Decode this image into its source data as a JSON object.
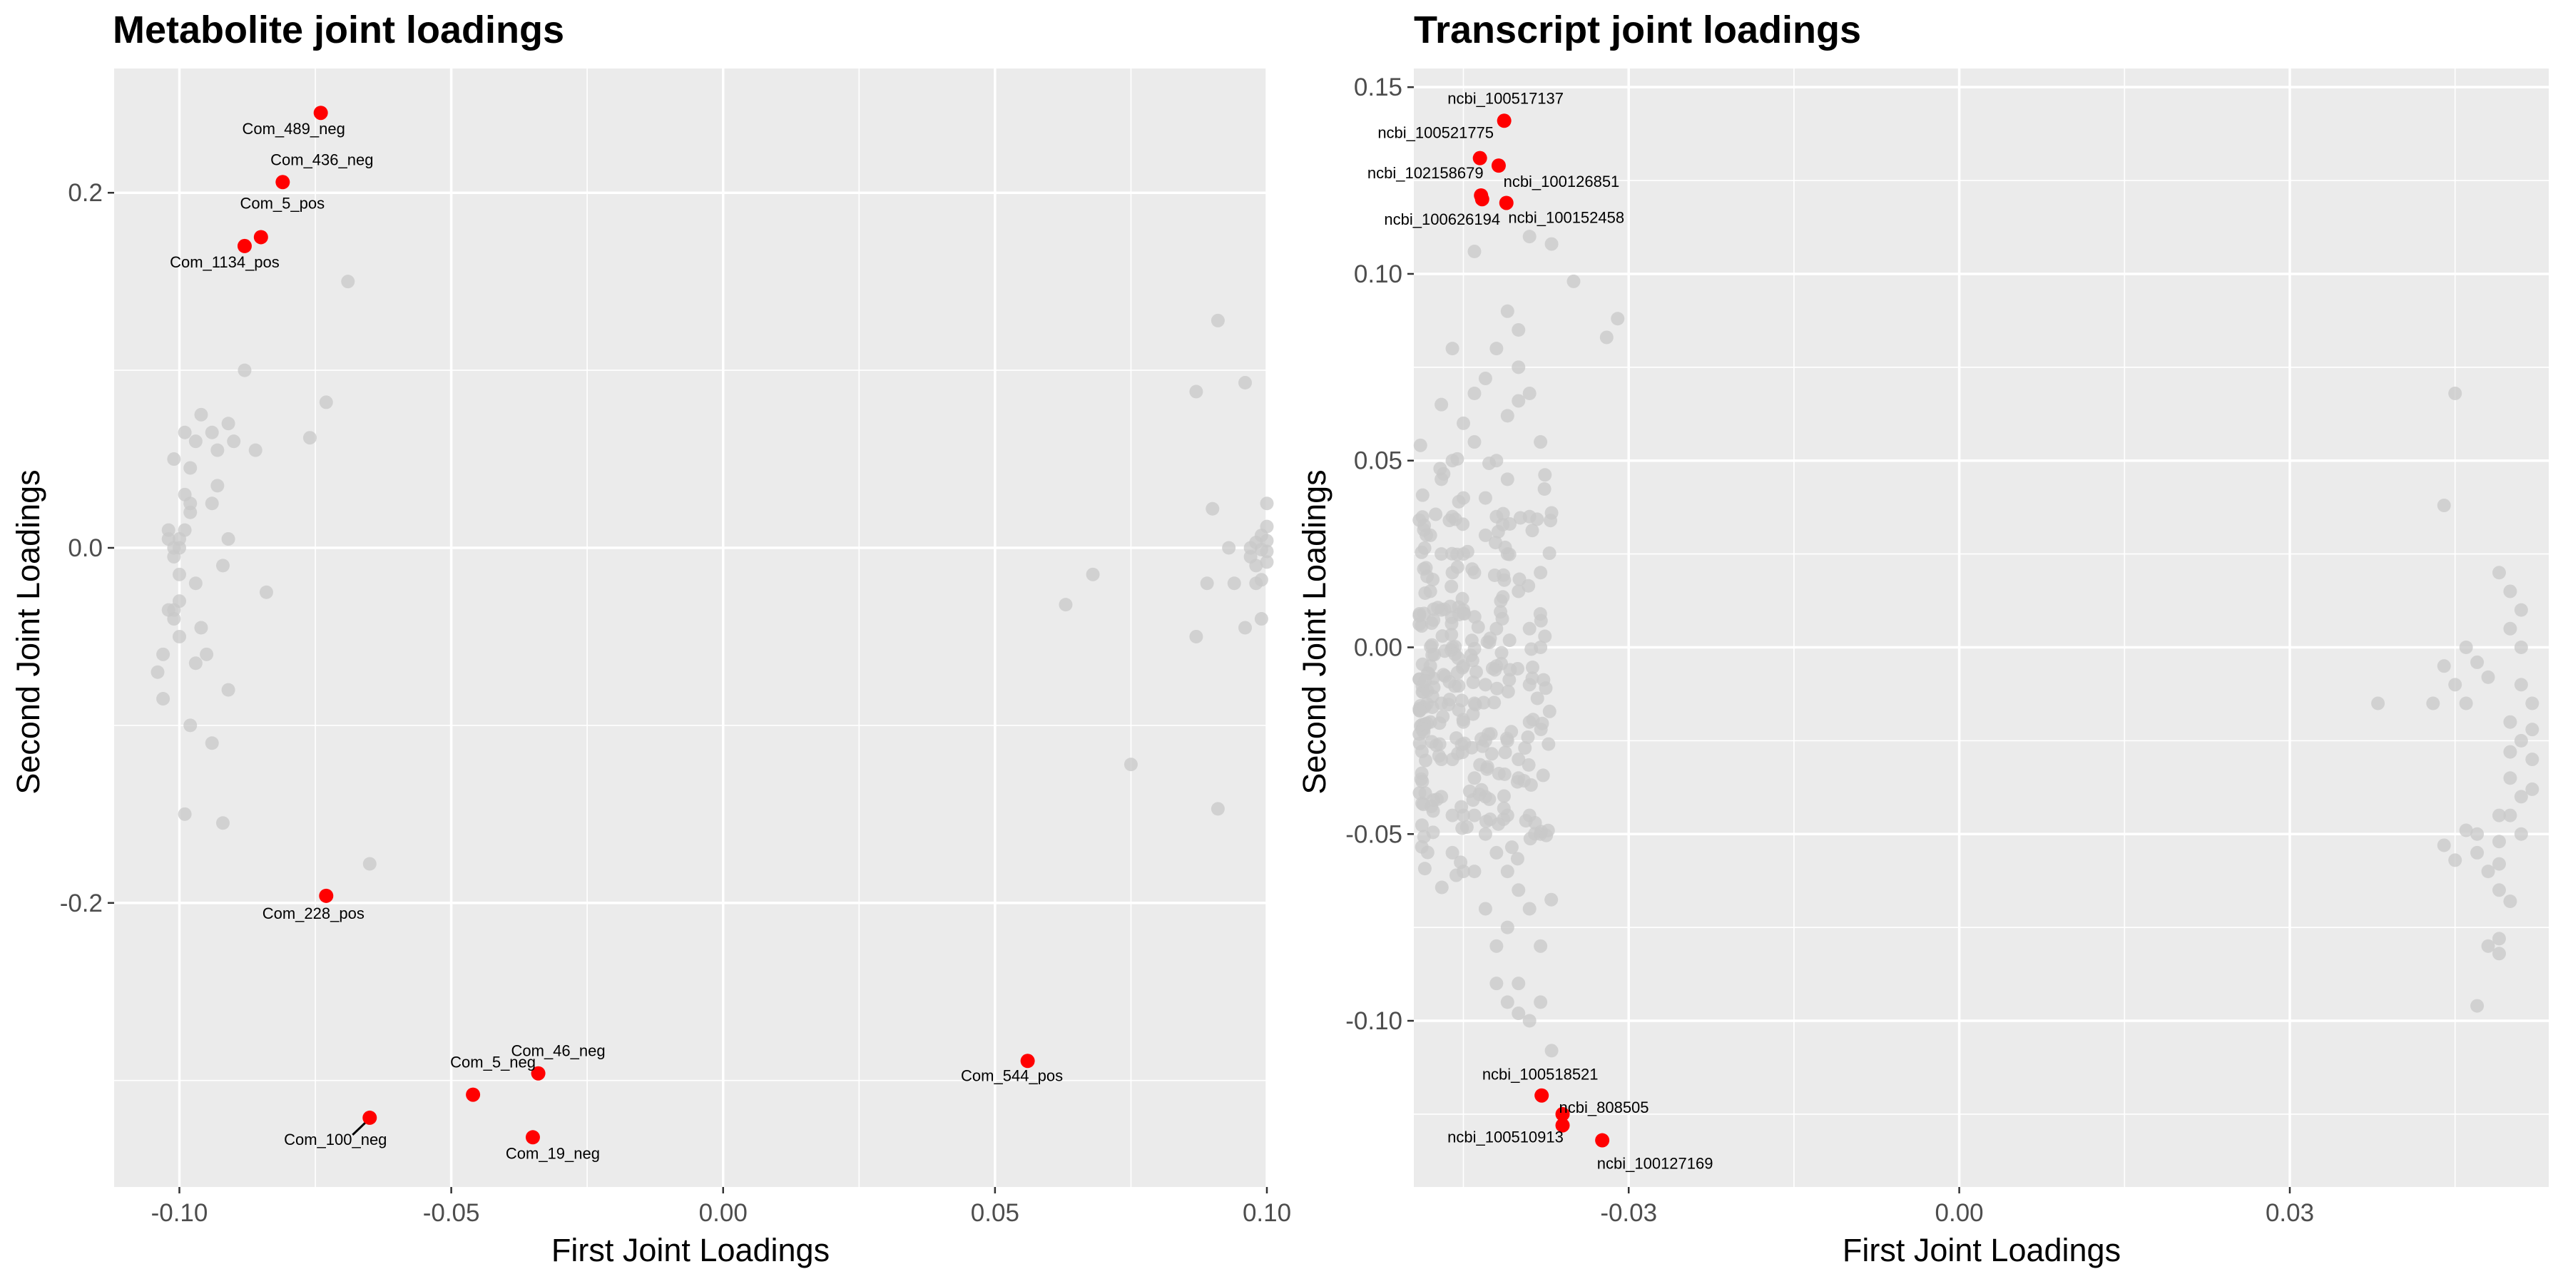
{
  "chart_data": [
    {
      "type": "scatter",
      "title": "Metabolite joint loadings",
      "xlabel": "First Joint Loadings",
      "ylabel": "Second Joint Loadings",
      "xlim": [
        -0.112,
        0.1
      ],
      "ylim": [
        -0.36,
        0.27
      ],
      "xticks": [
        -0.1,
        -0.05,
        0.0,
        0.05,
        0.1
      ],
      "xtick_labels": [
        "-0.10",
        "-0.05",
        "0.00",
        "0.05",
        "0.10"
      ],
      "yticks": [
        -0.2,
        0.0,
        0.2
      ],
      "ytick_labels": [
        "-0.2",
        "0.0",
        "0.2"
      ],
      "grid": true,
      "background": "#ebebeb",
      "highlight_color": "#ff0000",
      "point_color": "#c8c8c8",
      "series": [
        {
          "role": "background",
          "points": [
            [
              -0.1,
              0.0
            ],
            [
              -0.099,
              0.01
            ],
            [
              -0.101,
              -0.005
            ],
            [
              -0.098,
              0.02
            ],
            [
              -0.1,
              -0.015
            ],
            [
              -0.102,
              0.005
            ],
            [
              -0.099,
              0.03
            ],
            [
              -0.097,
              -0.02
            ],
            [
              -0.1,
              -0.03
            ],
            [
              -0.101,
              -0.035
            ],
            [
              -0.103,
              -0.06
            ],
            [
              -0.104,
              -0.07
            ],
            [
              -0.103,
              -0.085
            ],
            [
              -0.101,
              -0.04
            ],
            [
              -0.1,
              -0.05
            ],
            [
              -0.096,
              -0.045
            ],
            [
              -0.097,
              -0.065
            ],
            [
              -0.095,
              -0.06
            ],
            [
              -0.098,
              -0.1
            ],
            [
              -0.094,
              -0.11
            ],
            [
              -0.091,
              -0.08
            ],
            [
              -0.099,
              -0.15
            ],
            [
              -0.092,
              -0.155
            ],
            [
              -0.097,
              0.06
            ],
            [
              -0.099,
              0.065
            ],
            [
              -0.098,
              0.045
            ],
            [
              -0.096,
              0.075
            ],
            [
              -0.094,
              0.065
            ],
            [
              -0.093,
              0.055
            ],
            [
              -0.091,
              0.07
            ],
            [
              -0.09,
              0.06
            ],
            [
              -0.088,
              0.1
            ],
            [
              -0.086,
              0.055
            ],
            [
              -0.093,
              0.035
            ],
            [
              -0.094,
              0.025
            ],
            [
              -0.091,
              0.005
            ],
            [
              -0.084,
              -0.025
            ],
            [
              -0.098,
              0.025
            ],
            [
              -0.102,
              0.01
            ],
            [
              -0.101,
              0.05
            ],
            [
              -0.092,
              -0.01
            ],
            [
              -0.101,
              0.0
            ],
            [
              -0.1,
              0.005
            ],
            [
              -0.102,
              -0.035
            ],
            [
              -0.076,
              0.062
            ],
            [
              -0.073,
              0.082
            ],
            [
              -0.069,
              0.15
            ],
            [
              -0.065,
              -0.178
            ],
            [
              0.063,
              -0.032
            ],
            [
              0.068,
              -0.015
            ],
            [
              0.075,
              -0.122
            ],
            [
              0.087,
              0.088
            ],
            [
              0.087,
              -0.05
            ],
            [
              0.089,
              -0.02
            ],
            [
              0.09,
              0.022
            ],
            [
              0.091,
              0.128
            ],
            [
              0.091,
              -0.147
            ],
            [
              0.093,
              0.0
            ],
            [
              0.094,
              -0.02
            ],
            [
              0.096,
              0.093
            ],
            [
              0.096,
              -0.045
            ],
            [
              0.097,
              -0.005
            ],
            [
              0.097,
              0.0
            ],
            [
              0.098,
              -0.01
            ],
            [
              0.098,
              0.003
            ],
            [
              0.099,
              -0.018
            ],
            [
              0.099,
              0.007
            ],
            [
              0.1,
              -0.002
            ],
            [
              0.1,
              0.004
            ],
            [
              0.1,
              0.012
            ],
            [
              0.1,
              0.025
            ],
            [
              0.099,
              -0.04
            ],
            [
              0.098,
              -0.02
            ],
            [
              0.099,
              -0.001
            ],
            [
              0.1,
              -0.008
            ]
          ]
        },
        {
          "role": "highlighted",
          "points": [
            {
              "label": "Com_489_neg",
              "x": -0.074,
              "y": 0.245
            },
            {
              "label": "Com_436_neg",
              "x": -0.081,
              "y": 0.206
            },
            {
              "label": "Com_5_pos",
              "x": -0.085,
              "y": 0.175
            },
            {
              "label": "Com_1134_pos",
              "x": -0.088,
              "y": 0.17
            },
            {
              "label": "Com_228_pos",
              "x": -0.073,
              "y": -0.196
            },
            {
              "label": "Com_46_neg",
              "x": -0.034,
              "y": -0.296
            },
            {
              "label": "Com_5_neg",
              "x": -0.046,
              "y": -0.308
            },
            {
              "label": "Com_100_neg",
              "x": -0.065,
              "y": -0.321
            },
            {
              "label": "Com_19_neg",
              "x": -0.035,
              "y": -0.332
            },
            {
              "label": "Com_544_pos",
              "x": 0.056,
              "y": -0.289
            }
          ]
        }
      ]
    },
    {
      "type": "scatter",
      "title": "Transcript joint loadings",
      "xlabel": "First Joint Loadings",
      "ylabel": "Second Joint Loadings",
      "xlim": [
        -0.0495,
        0.0535
      ],
      "ylim": [
        -0.1445,
        0.155
      ],
      "xticks": [
        -0.03,
        0.0,
        0.03
      ],
      "xtick_labels": [
        "-0.03",
        "0.00",
        "0.03"
      ],
      "yticks": [
        -0.1,
        -0.05,
        0.0,
        0.05,
        0.1,
        0.15
      ],
      "ytick_labels": [
        "-0.10",
        "-0.05",
        "0.00",
        "0.05",
        "0.10",
        "0.15"
      ],
      "grid": true,
      "background": "#ebebeb",
      "highlight_color": "#ff0000",
      "point_color": "#c8c8c8",
      "series": [
        {
          "role": "background",
          "cluster_points": [
            [
              -0.047,
              0.065
            ],
            [
              -0.046,
              0.08
            ],
            [
              -0.047,
              0.045
            ],
            [
              -0.048,
              0.03
            ],
            [
              -0.046,
              0.02
            ],
            [
              -0.047,
              0.01
            ],
            [
              -0.048,
              -0.005
            ],
            [
              -0.047,
              -0.015
            ],
            [
              -0.046,
              -0.03
            ],
            [
              -0.047,
              -0.04
            ],
            [
              -0.046,
              -0.055
            ],
            [
              -0.045,
              -0.02
            ],
            [
              -0.044,
              -0.035
            ],
            [
              -0.045,
              -0.045
            ],
            [
              -0.044,
              -0.06
            ],
            [
              -0.043,
              -0.07
            ],
            [
              -0.042,
              -0.08
            ],
            [
              -0.041,
              -0.075
            ],
            [
              -0.04,
              -0.09
            ],
            [
              -0.039,
              -0.1
            ],
            [
              -0.041,
              0.09
            ],
            [
              -0.04,
              0.085
            ],
            [
              -0.042,
              0.08
            ],
            [
              -0.039,
              0.068
            ],
            [
              -0.038,
              0.055
            ],
            [
              -0.04,
              0.075
            ],
            [
              -0.037,
              0.108
            ],
            [
              -0.035,
              0.098
            ],
            [
              -0.032,
              0.083
            ],
            [
              -0.031,
              0.088
            ],
            [
              -0.044,
              0.106
            ],
            [
              -0.043,
              0.072
            ],
            [
              -0.041,
              0.062
            ],
            [
              -0.039,
              0.11
            ],
            [
              -0.04,
              0.066
            ],
            [
              -0.044,
              0.055
            ],
            [
              -0.042,
              0.05
            ],
            [
              -0.045,
              0.04
            ],
            [
              -0.043,
              0.03
            ],
            [
              -0.041,
              0.025
            ],
            [
              -0.04,
              0.015
            ],
            [
              -0.039,
              0.005
            ],
            [
              -0.042,
              -0.005
            ],
            [
              -0.041,
              -0.025
            ],
            [
              -0.04,
              -0.035
            ],
            [
              -0.039,
              -0.045
            ],
            [
              -0.038,
              -0.05
            ],
            [
              -0.043,
              -0.05
            ],
            [
              -0.041,
              -0.06
            ],
            [
              -0.04,
              -0.065
            ],
            [
              -0.039,
              -0.07
            ],
            [
              -0.038,
              -0.08
            ],
            [
              -0.042,
              -0.09
            ],
            [
              -0.041,
              -0.095
            ],
            [
              -0.04,
              -0.098
            ],
            [
              -0.038,
              -0.095
            ],
            [
              -0.037,
              -0.108
            ],
            [
              -0.037,
              0.036
            ],
            [
              -0.038,
              0.02
            ],
            [
              -0.039,
              -0.01
            ],
            [
              -0.039,
              -0.02
            ],
            [
              -0.046,
              0.0
            ],
            [
              -0.045,
              0.01
            ],
            [
              -0.044,
              0.02
            ],
            [
              -0.043,
              -0.01
            ],
            [
              -0.042,
              0.005
            ],
            [
              -0.045,
              -0.005
            ],
            [
              -0.044,
              -0.015
            ],
            [
              -0.043,
              -0.025
            ],
            [
              -0.048,
              0.015
            ],
            [
              -0.048,
              -0.02
            ],
            [
              -0.047,
              -0.03
            ],
            [
              -0.046,
              -0.045
            ],
            [
              -0.045,
              -0.06
            ],
            [
              -0.044,
              -0.045
            ],
            [
              -0.043,
              -0.04
            ],
            [
              -0.042,
              -0.055
            ],
            [
              -0.041,
              -0.045
            ],
            [
              -0.04,
              -0.03
            ],
            [
              -0.039,
              0.035
            ],
            [
              -0.038,
              0.0
            ],
            [
              -0.046,
              0.05
            ],
            [
              -0.045,
              0.06
            ],
            [
              -0.044,
              0.068
            ],
            [
              -0.043,
              0.04
            ],
            [
              -0.042,
              0.035
            ],
            [
              -0.041,
              0.045
            ],
            [
              -0.047,
              0.025
            ],
            [
              -0.046,
              0.035
            ],
            [
              -0.045,
              0.025
            ]
          ],
          "cluster_spread": [
            -0.049,
            -0.037
          ],
          "right_points": [
            [
              0.045,
              0.068
            ],
            [
              0.044,
              0.038
            ],
            [
              0.038,
              -0.015
            ],
            [
              0.043,
              -0.015
            ],
            [
              0.044,
              -0.005
            ],
            [
              0.045,
              -0.01
            ],
            [
              0.046,
              0.0
            ],
            [
              0.046,
              -0.015
            ],
            [
              0.047,
              -0.05
            ],
            [
              0.047,
              -0.055
            ],
            [
              0.048,
              -0.06
            ],
            [
              0.048,
              -0.08
            ],
            [
              0.049,
              -0.082
            ],
            [
              0.049,
              -0.078
            ],
            [
              0.047,
              -0.096
            ],
            [
              0.044,
              -0.053
            ],
            [
              0.045,
              -0.057
            ],
            [
              0.049,
              -0.045
            ],
            [
              0.049,
              0.02
            ],
            [
              0.05,
              0.015
            ],
            [
              0.05,
              0.005
            ],
            [
              0.051,
              0.0
            ],
            [
              0.051,
              -0.01
            ],
            [
              0.05,
              -0.02
            ],
            [
              0.051,
              -0.025
            ],
            [
              0.052,
              -0.03
            ],
            [
              0.052,
              -0.038
            ],
            [
              0.051,
              -0.05
            ],
            [
              0.049,
              -0.058
            ],
            [
              0.049,
              -0.065
            ],
            [
              0.05,
              -0.068
            ],
            [
              0.05,
              -0.045
            ],
            [
              0.051,
              0.01
            ],
            [
              0.052,
              -0.015
            ],
            [
              0.052,
              -0.022
            ],
            [
              0.048,
              -0.008
            ],
            [
              0.047,
              -0.004
            ],
            [
              0.05,
              -0.028
            ],
            [
              0.05,
              -0.035
            ],
            [
              0.051,
              -0.04
            ],
            [
              0.049,
              -0.052
            ],
            [
              0.046,
              -0.049
            ]
          ]
        },
        {
          "role": "highlighted",
          "points": [
            {
              "label": "ncbi_100517137",
              "x": -0.0413,
              "y": 0.141
            },
            {
              "label": "ncbi_100521775",
              "x": -0.0435,
              "y": 0.131
            },
            {
              "label": "ncbi_100126851",
              "x": -0.0418,
              "y": 0.129
            },
            {
              "label": "ncbi_102158679",
              "x": -0.0434,
              "y": 0.121
            },
            {
              "label": "ncbi_100152458",
              "x": -0.0411,
              "y": 0.119
            },
            {
              "label": "ncbi_100626194",
              "x": -0.0433,
              "y": 0.12
            },
            {
              "label": "ncbi_100518521",
              "x": -0.0379,
              "y": -0.12
            },
            {
              "label": "ncbi_808505",
              "x": -0.036,
              "y": -0.125
            },
            {
              "label": "ncbi_100510913",
              "x": -0.036,
              "y": -0.128
            },
            {
              "label": "ncbi_100127169",
              "x": -0.0324,
              "y": -0.132
            }
          ]
        }
      ]
    }
  ]
}
